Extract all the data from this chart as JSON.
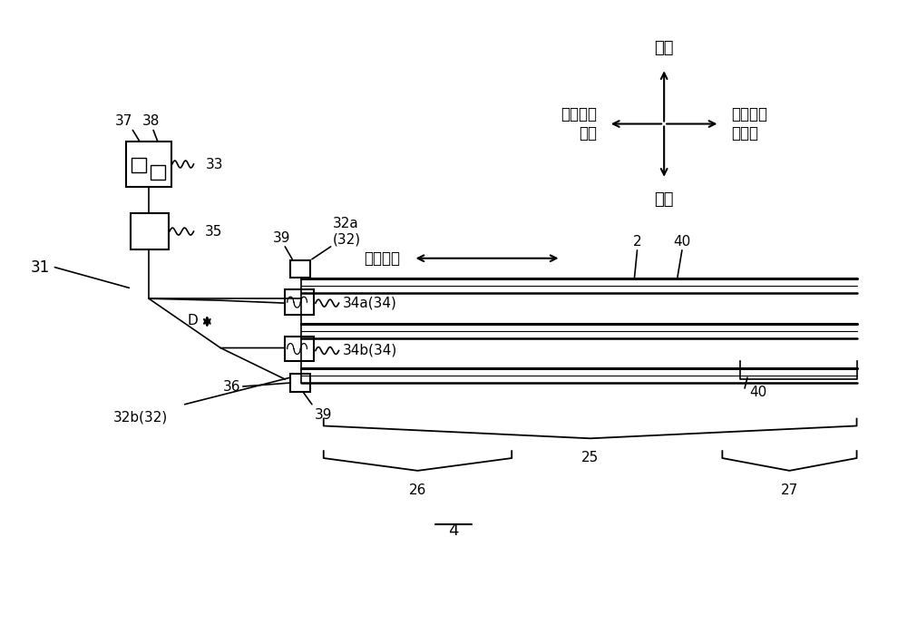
{
  "bg_color": "#ffffff",
  "line_color": "#000000",
  "labels": {
    "shang_ce": "上侧",
    "xia_ce": "下侧",
    "kd_yi_ce": "宽度方向\n一侧",
    "kd_ling_yi_ce": "宽度方向\n另一侧",
    "saomiao": "扫描方向",
    "label_31": "31",
    "label_33": "33",
    "label_35": "35",
    "label_37": "37",
    "label_38": "38",
    "label_39_top": "39",
    "label_39_bot": "39",
    "label_32a": "32a\n(32)",
    "label_32b": "32b(32)",
    "label_34a": "34a(34)",
    "label_34b": "34b(34)",
    "label_2": "2",
    "label_40_top": "40",
    "label_40_bot": "40",
    "label_36": "36",
    "label_D": "D",
    "label_25": "25",
    "label_26": "26",
    "label_27": "27",
    "label_4": "4"
  }
}
